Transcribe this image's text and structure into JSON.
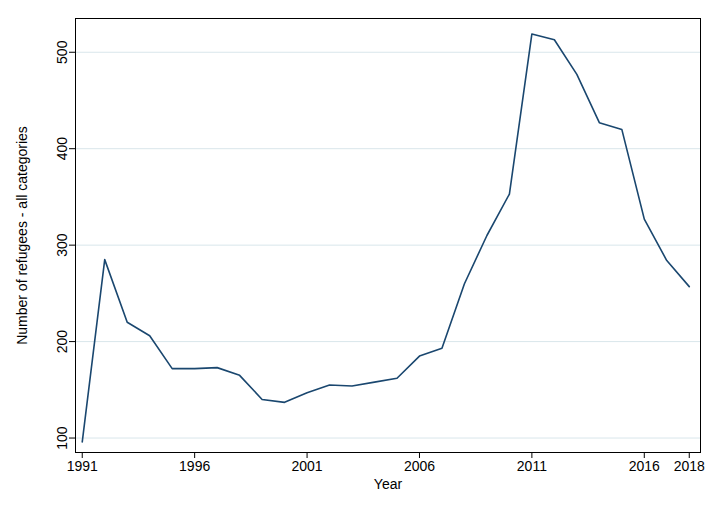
{
  "chart_data": {
    "type": "line",
    "x_label": "Year",
    "y_label": "Number of refugees - all categories",
    "x": [
      1991,
      1992,
      1993,
      1994,
      1995,
      1996,
      1997,
      1998,
      1999,
      2000,
      2001,
      2002,
      2003,
      2004,
      2005,
      2006,
      2007,
      2008,
      2009,
      2010,
      2011,
      2012,
      2013,
      2014,
      2015,
      2016,
      2017,
      2018
    ],
    "values": [
      96,
      285,
      220,
      206,
      172,
      172,
      173,
      165,
      140,
      137,
      147,
      155,
      154,
      158,
      162,
      185,
      193,
      260,
      310,
      353,
      519,
      513,
      477,
      427,
      420,
      327,
      284,
      257
    ],
    "color": "#1a476f",
    "xlim": [
      1990.7,
      2018.5
    ],
    "xticks": [
      1991,
      1996,
      2001,
      2006,
      2011,
      2016,
      2018
    ],
    "ylim": [
      85,
      535
    ],
    "yticks": [
      100,
      200,
      300,
      400,
      500
    ],
    "grid": true
  }
}
